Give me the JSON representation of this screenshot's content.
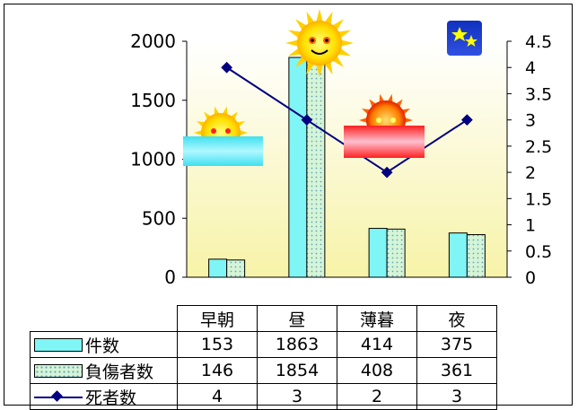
{
  "chart_data": {
    "type": "bar",
    "categories": [
      "早朝",
      "昼",
      "薄暮",
      "夜"
    ],
    "series": [
      {
        "name": "件数",
        "type": "bar",
        "axis": "left",
        "values": [
          153,
          1863,
          414,
          375
        ],
        "color": "#7ff5f5"
      },
      {
        "name": "負傷者数",
        "type": "bar",
        "axis": "left",
        "values": [
          146,
          1854,
          408,
          361
        ],
        "color": "#d6f5d6"
      },
      {
        "name": "死者数",
        "type": "line",
        "axis": "right",
        "values": [
          4,
          3,
          2,
          3
        ],
        "color": "#000080"
      }
    ],
    "y_left": {
      "range": [
        0,
        2000
      ],
      "ticks": [
        "0",
        "500",
        "1000",
        "1500",
        "2000"
      ]
    },
    "y_right": {
      "range": [
        0,
        4.5
      ],
      "ticks": [
        "0",
        "0.5",
        "1",
        "1.5",
        "2",
        "2.5",
        "3",
        "3.5",
        "4",
        "4.5"
      ]
    },
    "plot_background": [
      "#ffffff",
      "#f7f3a8"
    ],
    "decorations": [
      "sunrise-icon",
      "sun-icon",
      "sunset-icon",
      "stars-icon"
    ]
  },
  "table": {
    "rows": [
      {
        "label": "件数",
        "values": [
          "153",
          "1863",
          "414",
          "375"
        ]
      },
      {
        "label": "負傷者数",
        "values": [
          "146",
          "1854",
          "408",
          "361"
        ]
      },
      {
        "label": "死者数",
        "values": [
          "4",
          "3",
          "2",
          "3"
        ]
      }
    ]
  }
}
